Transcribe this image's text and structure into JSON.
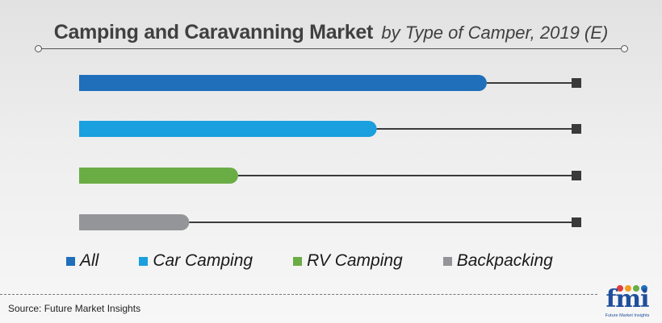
{
  "title": {
    "main": "Camping and Caravanning Market",
    "sub": "by Type of Camper, 2019 (E)"
  },
  "chart_data": {
    "type": "bar",
    "orientation": "horizontal",
    "categories": [
      "All",
      "Car Camping",
      "RV Camping",
      "Backpacking"
    ],
    "values": [
      100,
      73,
      39,
      27
    ],
    "xlim": [
      0,
      122
    ],
    "value_labels_shown": false,
    "legend_position": "bottom",
    "colors": [
      "#1f6fba",
      "#1a9fdf",
      "#6aad45",
      "#939598"
    ]
  },
  "legend": [
    {
      "label": "All",
      "color": "#1f6fba"
    },
    {
      "label": "Car Camping",
      "color": "#1a9fdf"
    },
    {
      "label": "RV Camping",
      "color": "#6aad45"
    },
    {
      "label": "Backpacking",
      "color": "#939598"
    }
  ],
  "footer": {
    "source": "Source: Future Market Insights"
  },
  "logo": {
    "text": "fmi",
    "tagline": "Future Market Insights",
    "dot_colors": [
      "#e23d3d",
      "#f59b1f",
      "#6aad45",
      "#1f6fba"
    ]
  }
}
